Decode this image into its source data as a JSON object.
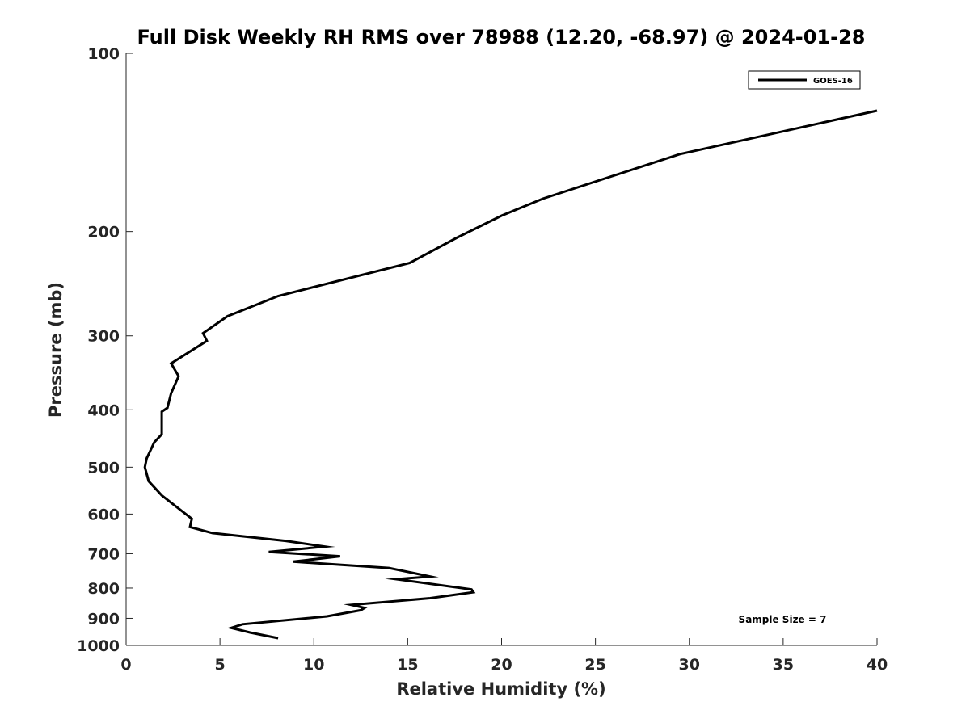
{
  "chart_data": {
    "type": "line",
    "title": "Full Disk Weekly RH RMS over 78988 (12.20, -68.97) @ 2024-01-28",
    "xlabel": "Relative Humidity (%)",
    "ylabel": "Pressure (mb)",
    "xlim": [
      0,
      40
    ],
    "ylim": [
      100,
      1000
    ],
    "y_scale": "log",
    "y_reversed": true,
    "x_ticks": [
      0,
      5,
      10,
      15,
      20,
      25,
      30,
      35,
      40
    ],
    "y_ticks": [
      100,
      200,
      300,
      400,
      500,
      600,
      700,
      800,
      900,
      1000
    ],
    "grid": false,
    "legend_position": "top-right",
    "annotation": "Sample Size = 7",
    "series": [
      {
        "name": "GOES-16",
        "color": "#000000",
        "points": [
          [
            40.0,
            125
          ],
          [
            29.5,
            148
          ],
          [
            22.2,
            176
          ],
          [
            20.0,
            188
          ],
          [
            17.6,
            205
          ],
          [
            15.1,
            226
          ],
          [
            8.1,
            257
          ],
          [
            5.4,
            278
          ],
          [
            4.1,
            297
          ],
          [
            4.3,
            306
          ],
          [
            2.4,
            334
          ],
          [
            2.8,
            351
          ],
          [
            2.4,
            375
          ],
          [
            2.2,
            397
          ],
          [
            1.9,
            403
          ],
          [
            1.9,
            440
          ],
          [
            1.5,
            454
          ],
          [
            1.1,
            483
          ],
          [
            1.0,
            500
          ],
          [
            1.2,
            528
          ],
          [
            1.9,
            558
          ],
          [
            3.5,
            611
          ],
          [
            3.4,
            631
          ],
          [
            4.6,
            646
          ],
          [
            8.5,
            666
          ],
          [
            10.6,
            681
          ],
          [
            7.6,
            695
          ],
          [
            11.4,
            707
          ],
          [
            8.9,
            722
          ],
          [
            14.0,
            740
          ],
          [
            16.2,
            765
          ],
          [
            14.4,
            773
          ],
          [
            18.4,
            804
          ],
          [
            18.5,
            813
          ],
          [
            16.2,
            832
          ],
          [
            12.0,
            854
          ],
          [
            12.7,
            864
          ],
          [
            12.5,
            872
          ],
          [
            10.7,
            893
          ],
          [
            6.2,
            921
          ],
          [
            5.6,
            934
          ],
          [
            6.6,
            951
          ],
          [
            8.1,
            972
          ]
        ]
      }
    ]
  }
}
